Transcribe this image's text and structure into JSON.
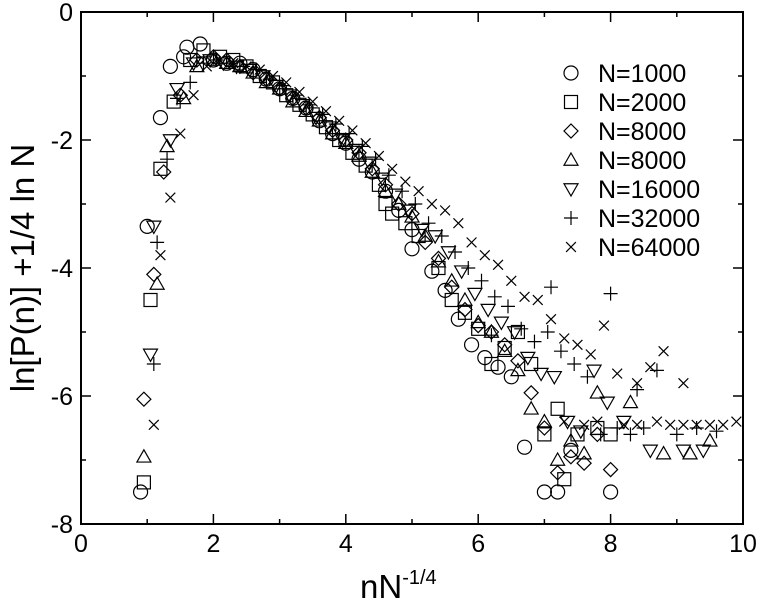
{
  "chart_data": {
    "type": "scatter",
    "title": "",
    "xlabel": "nN",
    "xlabel_exponent": "-1/4",
    "ylabel": "ln[P(n)] +1/4 ln N",
    "xlim": [
      0,
      10
    ],
    "ylim": [
      -8,
      0
    ],
    "xticks": [
      0,
      2,
      4,
      6,
      8,
      10
    ],
    "yticks": [
      0,
      -2,
      -4,
      -6,
      -8
    ],
    "grid": false,
    "legend_position": "top-right",
    "series": [
      {
        "name": "N=1000",
        "marker": "circle",
        "points": [
          [
            0.9,
            -7.5
          ],
          [
            1.0,
            -3.35
          ],
          [
            1.2,
            -1.65
          ],
          [
            1.35,
            -0.85
          ],
          [
            1.55,
            -0.7
          ],
          [
            1.6,
            -0.55
          ],
          [
            1.8,
            -0.5
          ],
          [
            2.0,
            -0.75
          ],
          [
            2.2,
            -0.8
          ],
          [
            2.4,
            -0.8
          ],
          [
            2.6,
            -0.9
          ],
          [
            2.8,
            -1.05
          ],
          [
            3.0,
            -1.2
          ],
          [
            3.2,
            -1.35
          ],
          [
            3.4,
            -1.5
          ],
          [
            3.6,
            -1.7
          ],
          [
            3.8,
            -1.9
          ],
          [
            4.0,
            -2.05
          ],
          [
            4.2,
            -2.3
          ],
          [
            4.4,
            -2.5
          ],
          [
            4.6,
            -2.8
          ],
          [
            4.8,
            -3.1
          ],
          [
            5.0,
            -3.4
          ],
          [
            5.0,
            -3.7
          ],
          [
            5.3,
            -4.05
          ],
          [
            5.5,
            -4.35
          ],
          [
            5.7,
            -4.8
          ],
          [
            5.9,
            -5.2
          ],
          [
            6.1,
            -5.4
          ],
          [
            6.3,
            -5.55
          ],
          [
            6.5,
            -5.7
          ],
          [
            6.7,
            -6.8
          ],
          [
            7.0,
            -7.5
          ],
          [
            7.2,
            -7.5
          ],
          [
            7.4,
            -6.85
          ],
          [
            8.0,
            -7.5
          ]
        ]
      },
      {
        "name": "N=2000",
        "marker": "square",
        "points": [
          [
            0.95,
            -7.35
          ],
          [
            1.05,
            -4.5
          ],
          [
            1.2,
            -2.45
          ],
          [
            1.4,
            -1.4
          ],
          [
            1.65,
            -0.75
          ],
          [
            1.85,
            -0.6
          ],
          [
            2.1,
            -0.7
          ],
          [
            2.3,
            -0.75
          ],
          [
            2.5,
            -0.85
          ],
          [
            2.7,
            -1.0
          ],
          [
            2.9,
            -1.1
          ],
          [
            3.1,
            -1.3
          ],
          [
            3.3,
            -1.45
          ],
          [
            3.5,
            -1.6
          ],
          [
            3.7,
            -1.8
          ],
          [
            3.9,
            -2.0
          ],
          [
            4.1,
            -2.2
          ],
          [
            4.3,
            -2.4
          ],
          [
            4.5,
            -2.7
          ],
          [
            4.6,
            -3.0
          ],
          [
            4.7,
            -3.15
          ],
          [
            4.9,
            -3.3
          ],
          [
            5.1,
            -3.5
          ],
          [
            5.4,
            -4.0
          ],
          [
            5.6,
            -4.5
          ],
          [
            5.8,
            -4.7
          ],
          [
            6.0,
            -4.95
          ],
          [
            6.2,
            -5.5
          ],
          [
            6.4,
            -5.25
          ],
          [
            6.6,
            -5.0
          ],
          [
            6.8,
            -5.5
          ],
          [
            7.0,
            -6.6
          ],
          [
            7.2,
            -6.2
          ],
          [
            7.3,
            -7.3
          ],
          [
            7.5,
            -6.6
          ],
          [
            7.8,
            -6.5
          ],
          [
            8.0,
            -6.6
          ]
        ]
      },
      {
        "name": "N=8000",
        "marker": "diamond",
        "points": [
          [
            0.95,
            -6.05
          ],
          [
            1.1,
            -4.1
          ],
          [
            1.25,
            -2.5
          ],
          [
            1.5,
            -1.3
          ],
          [
            1.75,
            -0.75
          ],
          [
            2.0,
            -0.7
          ],
          [
            2.2,
            -0.75
          ],
          [
            2.4,
            -0.85
          ],
          [
            2.6,
            -0.95
          ],
          [
            2.8,
            -1.05
          ],
          [
            3.0,
            -1.2
          ],
          [
            3.2,
            -1.35
          ],
          [
            3.4,
            -1.5
          ],
          [
            3.6,
            -1.65
          ],
          [
            3.8,
            -1.85
          ],
          [
            4.0,
            -2.0
          ],
          [
            4.2,
            -2.2
          ],
          [
            4.4,
            -2.45
          ],
          [
            4.6,
            -2.7
          ],
          [
            4.8,
            -3.0
          ],
          [
            5.0,
            -3.15
          ],
          [
            5.2,
            -3.6
          ],
          [
            5.4,
            -3.85
          ],
          [
            5.6,
            -4.3
          ],
          [
            5.8,
            -4.65
          ],
          [
            6.0,
            -4.9
          ],
          [
            6.2,
            -5.0
          ],
          [
            6.4,
            -5.2
          ],
          [
            6.6,
            -5.45
          ],
          [
            6.8,
            -5.95
          ],
          [
            7.0,
            -6.5
          ],
          [
            7.2,
            -7.2
          ],
          [
            7.4,
            -6.95
          ],
          [
            7.6,
            -7.05
          ],
          [
            7.8,
            -6.6
          ],
          [
            8.0,
            -7.15
          ]
        ]
      },
      {
        "name": "N=8000",
        "marker": "triangle-up",
        "points": [
          [
            0.95,
            -6.95
          ],
          [
            1.15,
            -4.25
          ],
          [
            1.3,
            -2.1
          ],
          [
            1.55,
            -1.35
          ],
          [
            1.75,
            -0.85
          ],
          [
            2.0,
            -0.75
          ],
          [
            2.2,
            -0.8
          ],
          [
            2.4,
            -0.85
          ],
          [
            2.6,
            -0.95
          ],
          [
            2.8,
            -1.1
          ],
          [
            3.0,
            -1.2
          ],
          [
            3.2,
            -1.4
          ],
          [
            3.4,
            -1.55
          ],
          [
            3.6,
            -1.7
          ],
          [
            3.8,
            -1.9
          ],
          [
            4.0,
            -2.05
          ],
          [
            4.2,
            -2.25
          ],
          [
            4.4,
            -2.5
          ],
          [
            4.6,
            -2.8
          ],
          [
            4.8,
            -3.0
          ],
          [
            5.0,
            -3.2
          ],
          [
            5.2,
            -3.5
          ],
          [
            5.4,
            -3.9
          ],
          [
            5.6,
            -4.2
          ],
          [
            5.8,
            -4.5
          ],
          [
            6.0,
            -4.85
          ],
          [
            6.2,
            -5.0
          ],
          [
            6.4,
            -5.3
          ],
          [
            6.6,
            -5.6
          ],
          [
            6.8,
            -6.2
          ],
          [
            7.0,
            -6.4
          ],
          [
            7.2,
            -7.0
          ],
          [
            7.4,
            -6.7
          ],
          [
            7.6,
            -6.9
          ],
          [
            7.8,
            -5.95
          ],
          [
            8.3,
            -6.1
          ],
          [
            8.8,
            -6.9
          ],
          [
            9.2,
            -6.9
          ],
          [
            9.5,
            -6.7
          ]
        ]
      },
      {
        "name": "N=16000",
        "marker": "triangle-down",
        "points": [
          [
            1.05,
            -5.35
          ],
          [
            1.1,
            -3.35
          ],
          [
            1.35,
            -2.0
          ],
          [
            1.45,
            -1.2
          ],
          [
            1.7,
            -0.8
          ],
          [
            1.95,
            -0.75
          ],
          [
            2.15,
            -0.8
          ],
          [
            2.35,
            -0.85
          ],
          [
            2.55,
            -0.9
          ],
          [
            2.75,
            -1.0
          ],
          [
            2.95,
            -1.15
          ],
          [
            3.15,
            -1.3
          ],
          [
            3.35,
            -1.45
          ],
          [
            3.55,
            -1.65
          ],
          [
            3.75,
            -1.8
          ],
          [
            3.95,
            -2.0
          ],
          [
            4.15,
            -2.15
          ],
          [
            4.35,
            -2.35
          ],
          [
            4.55,
            -2.6
          ],
          [
            4.75,
            -2.85
          ],
          [
            4.95,
            -3.1
          ],
          [
            5.15,
            -3.4
          ],
          [
            5.35,
            -3.5
          ],
          [
            5.55,
            -3.75
          ],
          [
            5.75,
            -4.05
          ],
          [
            5.95,
            -4.4
          ],
          [
            6.15,
            -4.65
          ],
          [
            6.35,
            -4.85
          ],
          [
            6.55,
            -5.0
          ],
          [
            6.75,
            -5.4
          ],
          [
            6.95,
            -5.65
          ],
          [
            7.15,
            -5.7
          ],
          [
            7.35,
            -6.4
          ],
          [
            7.55,
            -6.55
          ],
          [
            7.75,
            -5.6
          ],
          [
            7.95,
            -6.1
          ],
          [
            8.2,
            -6.4
          ],
          [
            8.6,
            -6.85
          ],
          [
            9.1,
            -6.85
          ],
          [
            9.4,
            -6.85
          ]
        ]
      },
      {
        "name": "N=32000",
        "marker": "plus",
        "points": [
          [
            1.1,
            -5.5
          ],
          [
            1.15,
            -3.6
          ],
          [
            1.3,
            -2.3
          ],
          [
            1.45,
            -1.35
          ],
          [
            1.65,
            -1.1
          ],
          [
            1.85,
            -0.8
          ],
          [
            2.05,
            -0.75
          ],
          [
            2.25,
            -0.8
          ],
          [
            2.45,
            -0.85
          ],
          [
            2.65,
            -0.9
          ],
          [
            2.85,
            -1.05
          ],
          [
            3.05,
            -1.15
          ],
          [
            3.25,
            -1.3
          ],
          [
            3.45,
            -1.45
          ],
          [
            3.65,
            -1.6
          ],
          [
            3.85,
            -1.75
          ],
          [
            4.05,
            -1.9
          ],
          [
            4.25,
            -2.1
          ],
          [
            4.45,
            -2.3
          ],
          [
            4.65,
            -2.55
          ],
          [
            4.85,
            -2.8
          ],
          [
            5.05,
            -3.0
          ],
          [
            5.25,
            -3.3
          ],
          [
            5.45,
            -3.5
          ],
          [
            5.65,
            -3.75
          ],
          [
            5.85,
            -4.0
          ],
          [
            6.05,
            -4.2
          ],
          [
            6.25,
            -4.45
          ],
          [
            6.45,
            -4.6
          ],
          [
            6.65,
            -4.95
          ],
          [
            6.85,
            -5.15
          ],
          [
            7.05,
            -5.0
          ],
          [
            7.25,
            -5.3
          ],
          [
            7.45,
            -5.5
          ],
          [
            7.65,
            -5.7
          ],
          [
            7.85,
            -6.6
          ],
          [
            8.1,
            -6.5
          ],
          [
            8.3,
            -6.6
          ],
          [
            8.5,
            -6.5
          ],
          [
            8.7,
            -5.6
          ],
          [
            9.0,
            -6.6
          ],
          [
            9.3,
            -6.5
          ],
          [
            9.6,
            -6.55
          ],
          [
            8.4,
            -5.9
          ],
          [
            8.0,
            -4.4
          ],
          [
            7.1,
            -4.3
          ],
          [
            6.2,
            -5.05
          ]
        ]
      },
      {
        "name": "N=64000",
        "marker": "x",
        "points": [
          [
            1.1,
            -6.45
          ],
          [
            1.2,
            -3.8
          ],
          [
            1.35,
            -2.9
          ],
          [
            1.5,
            -1.9
          ],
          [
            1.7,
            -1.3
          ],
          [
            1.9,
            -0.85
          ],
          [
            2.1,
            -0.75
          ],
          [
            2.3,
            -0.8
          ],
          [
            2.5,
            -0.85
          ],
          [
            2.7,
            -0.9
          ],
          [
            2.9,
            -1.0
          ],
          [
            3.1,
            -1.1
          ],
          [
            3.3,
            -1.25
          ],
          [
            3.5,
            -1.4
          ],
          [
            3.7,
            -1.55
          ],
          [
            3.9,
            -1.7
          ],
          [
            4.1,
            -1.85
          ],
          [
            4.3,
            -2.05
          ],
          [
            4.5,
            -2.25
          ],
          [
            4.7,
            -2.45
          ],
          [
            4.9,
            -2.65
          ],
          [
            5.1,
            -2.8
          ],
          [
            5.3,
            -3.0
          ],
          [
            5.5,
            -3.1
          ],
          [
            5.7,
            -3.3
          ],
          [
            5.9,
            -3.6
          ],
          [
            6.1,
            -3.8
          ],
          [
            6.3,
            -3.95
          ],
          [
            6.5,
            -4.2
          ],
          [
            6.7,
            -4.45
          ],
          [
            6.9,
            -4.5
          ],
          [
            7.1,
            -4.8
          ],
          [
            7.3,
            -5.1
          ],
          [
            7.5,
            -5.2
          ],
          [
            7.7,
            -5.35
          ],
          [
            7.9,
            -4.9
          ],
          [
            8.1,
            -5.65
          ],
          [
            8.4,
            -5.8
          ],
          [
            8.6,
            -5.55
          ],
          [
            8.8,
            -5.3
          ],
          [
            9.1,
            -5.8
          ],
          [
            7.3,
            -6.4
          ],
          [
            7.6,
            -6.45
          ],
          [
            7.8,
            -6.4
          ],
          [
            8.2,
            -6.45
          ],
          [
            8.4,
            -6.45
          ],
          [
            8.7,
            -6.4
          ],
          [
            8.9,
            -6.45
          ],
          [
            9.1,
            -6.45
          ],
          [
            9.3,
            -6.45
          ],
          [
            9.5,
            -6.45
          ],
          [
            9.7,
            -6.45
          ],
          [
            9.9,
            -6.4
          ]
        ]
      }
    ]
  }
}
